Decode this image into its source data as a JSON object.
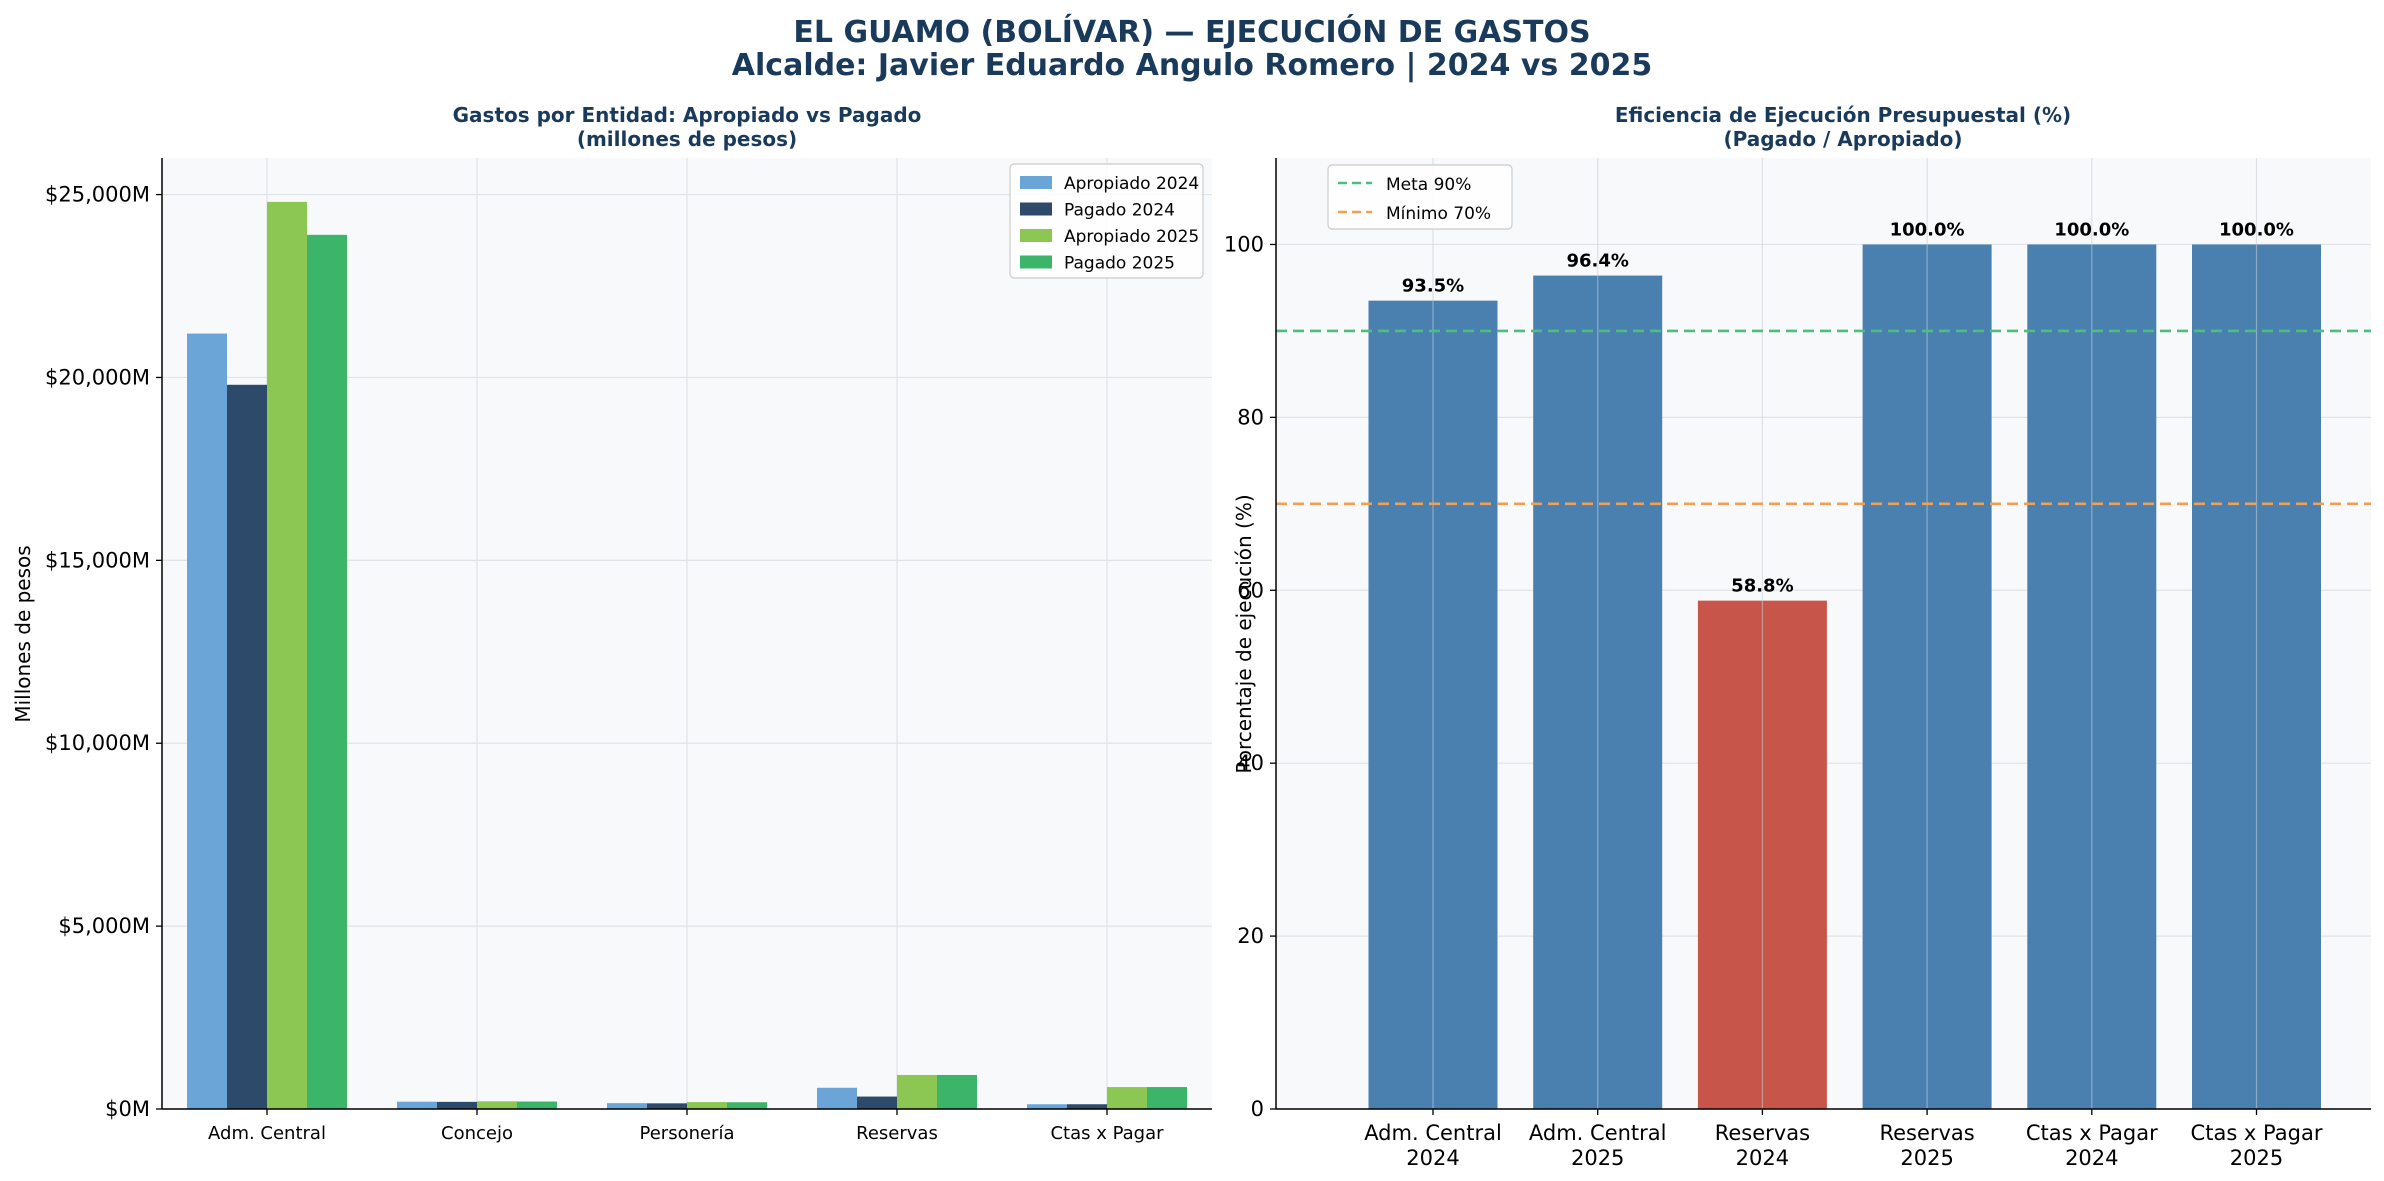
{
  "title_line1": "EL GUAMO (BOLÍVAR) — EJECUCIÓN DE GASTOS",
  "title_line2": "Alcalde: Javier Eduardo Angulo Romero | 2024 vs 2025",
  "chart_data": [
    {
      "type": "bar",
      "title_line1": "Gastos por Entidad: Apropiado vs Pagado",
      "title_line2": "(millones de pesos)",
      "ylabel": "Millones de pesos",
      "ylim": [
        0,
        26000
      ],
      "yticks": [
        0,
        5000,
        10000,
        15000,
        20000,
        25000
      ],
      "ytick_labels": [
        "$0M",
        "$5,000M",
        "$10,000M",
        "$15,000M",
        "$20,000M",
        "$25,000M"
      ],
      "categories": [
        "Adm. Central",
        "Concejo",
        "Personería",
        "Reservas",
        "Ctas x Pagar"
      ],
      "series": [
        {
          "name": "Apropiado 2024",
          "color": "#6ba5d7",
          "values": [
            21200,
            200,
            160,
            580,
            130
          ]
        },
        {
          "name": "Pagado 2024",
          "color": "#2e4a6b",
          "values": [
            19800,
            195,
            155,
            340,
            130
          ]
        },
        {
          "name": "Apropiado 2025",
          "color": "#8dc753",
          "values": [
            24800,
            210,
            190,
            930,
            600
          ]
        },
        {
          "name": "Pagado 2025",
          "color": "#3cb56b",
          "values": [
            23900,
            205,
            185,
            930,
            600
          ]
        }
      ],
      "legend": "top-right",
      "grid": true
    },
    {
      "type": "bar",
      "title_line1": "Eficiencia de Ejecución Presupuestal (%)",
      "title_line2": "(Pagado / Apropiado)",
      "ylabel": "Porcentaje de ejecución (%)",
      "ylim": [
        0,
        110
      ],
      "yticks": [
        0,
        20,
        40,
        60,
        80,
        100
      ],
      "ytick_labels": [
        "0",
        "20",
        "40",
        "60",
        "80",
        "100"
      ],
      "categories": [
        [
          "Adm. Central",
          "2024"
        ],
        [
          "Adm. Central",
          "2025"
        ],
        [
          "Reservas",
          "2024"
        ],
        [
          "Reservas",
          "2025"
        ],
        [
          "Ctas x Pagar",
          "2024"
        ],
        [
          "Ctas x Pagar",
          "2025"
        ]
      ],
      "values": [
        93.5,
        96.4,
        58.8,
        100.0,
        100.0,
        100.0
      ],
      "value_labels": [
        "93.5%",
        "96.4%",
        "58.8%",
        "100.0%",
        "100.0%",
        "100.0%"
      ],
      "bar_colors": [
        "#4a80b0",
        "#4a80b0",
        "#c8554a",
        "#4a80b0",
        "#4a80b0",
        "#4a80b0"
      ],
      "reference_lines": [
        {
          "name": "Meta 90%",
          "value": 90,
          "color": "#4cbf7f",
          "style": "dashed"
        },
        {
          "name": "Mínimo 70%",
          "value": 70,
          "color": "#f0a050",
          "style": "dashed"
        }
      ],
      "legend": "top-left",
      "grid": true
    }
  ]
}
